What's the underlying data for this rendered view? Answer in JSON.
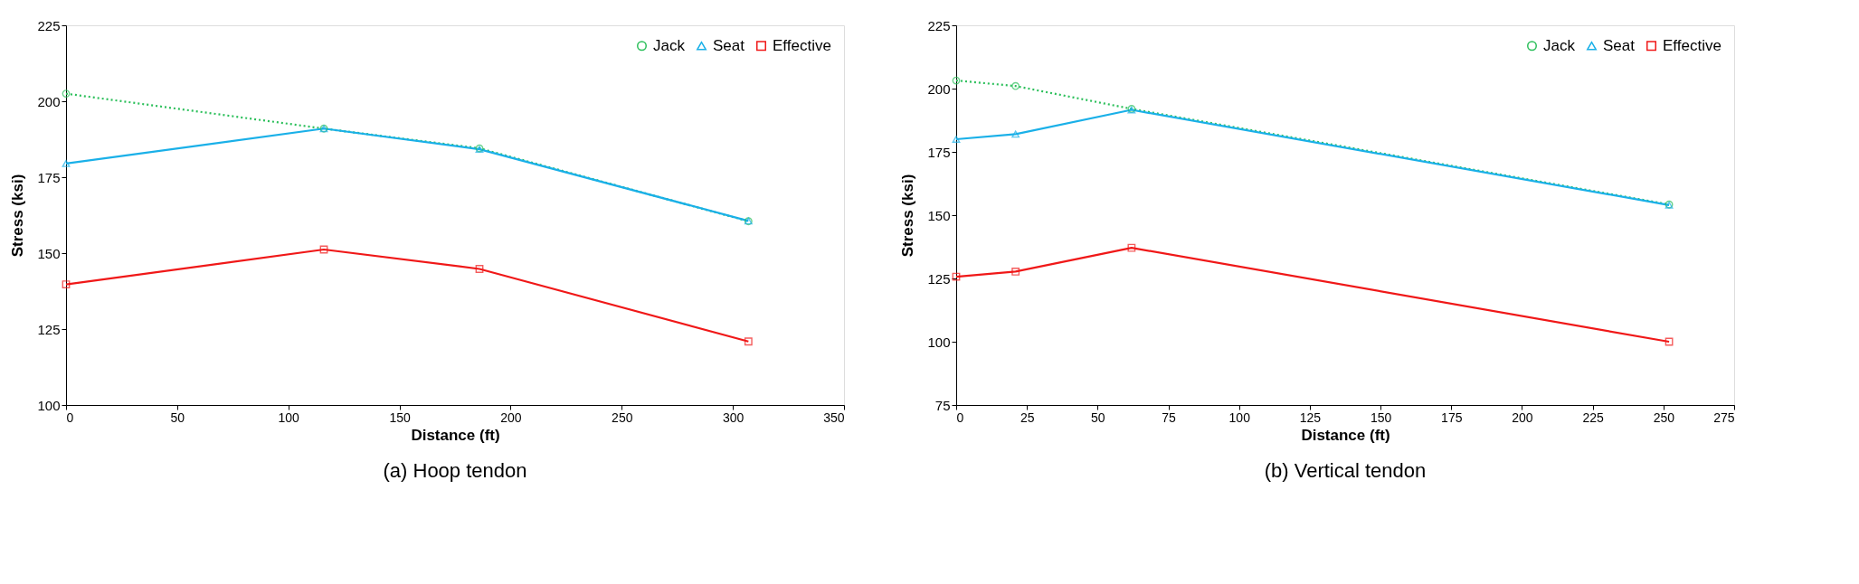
{
  "chart_data": [
    {
      "type": "line",
      "title": "(a) Hoop tendon",
      "xlabel": "Distance (ft)",
      "ylabel": "Stress (ksi)",
      "xlim": [
        0,
        350
      ],
      "xticks": [
        0,
        50,
        100,
        150,
        200,
        250,
        300,
        350
      ],
      "ylim": [
        100,
        225
      ],
      "yticks": [
        100,
        125,
        150,
        175,
        200,
        225
      ],
      "grid": false,
      "legend": "top right",
      "x": [
        0,
        116,
        186,
        307
      ],
      "series": [
        {
          "name": "Jack",
          "color": "#2bbf5a",
          "marker": "circle",
          "line_style": "dotted",
          "values": [
            202.5,
            191,
            184.5,
            160.5
          ]
        },
        {
          "name": "Seat",
          "color": "#1ab0e8",
          "marker": "triangle",
          "line_style": "solid",
          "values": [
            179.5,
            191,
            184.2,
            160.6
          ]
        },
        {
          "name": "Effective",
          "color": "#f01818",
          "marker": "square",
          "line_style": "solid",
          "values": [
            139.7,
            151.2,
            144.8,
            120.9
          ]
        }
      ]
    },
    {
      "type": "line",
      "title": "(b) Vertical tendon",
      "xlabel": "Distance  (ft)",
      "ylabel": "Stress (ksi)",
      "xlim": [
        0,
        275
      ],
      "xticks": [
        0,
        25,
        50,
        75,
        100,
        125,
        150,
        175,
        200,
        225,
        250,
        275
      ],
      "ylim": [
        75,
        225
      ],
      "yticks": [
        75,
        100,
        125,
        150,
        175,
        200,
        225
      ],
      "grid": false,
      "legend": "top right",
      "x": [
        0,
        21,
        62,
        252
      ],
      "series": [
        {
          "name": "Jack",
          "color": "#2bbf5a",
          "marker": "circle",
          "line_style": "dotted",
          "values": [
            203.2,
            201,
            192,
            154.2
          ]
        },
        {
          "name": "Seat",
          "color": "#1ab0e8",
          "marker": "triangle",
          "line_style": "solid",
          "values": [
            180,
            182,
            191.6,
            154
          ]
        },
        {
          "name": "Effective",
          "color": "#f01818",
          "marker": "square",
          "line_style": "solid",
          "values": [
            125.7,
            127.7,
            137.1,
            100
          ]
        }
      ]
    }
  ]
}
